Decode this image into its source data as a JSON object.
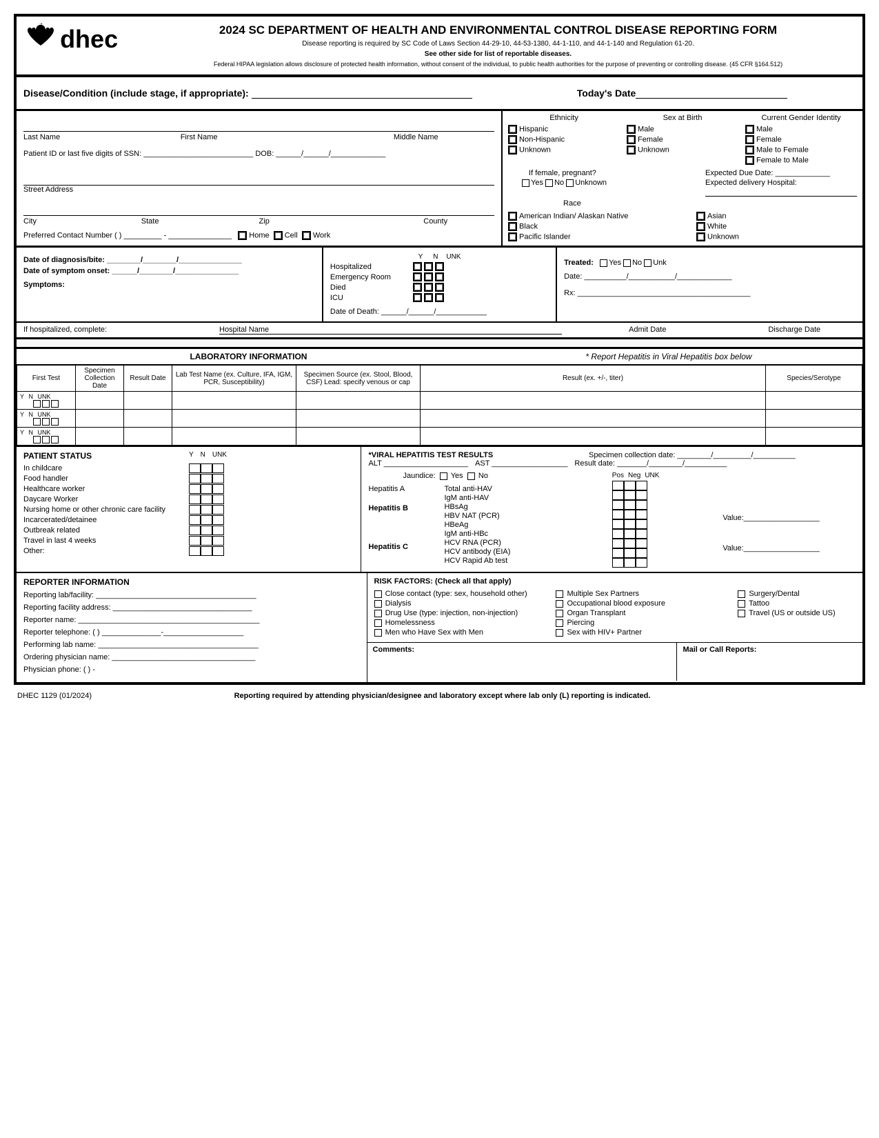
{
  "header": {
    "org": "dhec",
    "title": "2024 SC DEPARTMENT OF HEALTH AND ENVIRONMENTAL CONTROL DISEASE REPORTING FORM",
    "subtitle1": "Disease reporting is required by SC Code of Laws Section 44-29-10, 44-53-1380, 44-1-110, and 44-1-140 and Regulation 61-20.",
    "subtitle2": "See other side for list of reportable diseases.",
    "subtitle3": "Federal HIPAA legislation allows disclosure of protected health information, without consent of the individual, to public health authorities for the purpose of preventing or controlling disease. (45 CFR §164.512)"
  },
  "disease": {
    "label": "Disease/Condition (include stage, if appropriate): ",
    "date_label": "Today's Date"
  },
  "patient": {
    "last_name": "Last Name",
    "first_name": "First Name",
    "middle_name": "Middle Name",
    "pid": "Patient ID or last five digits of SSN: __________________________ DOB: ______/______/_____________",
    "street": "Street Address",
    "city": "City",
    "state": "State",
    "zip": "Zip",
    "county": "County",
    "contact": "Preferred Contact Number  (          ) _________ - _______________",
    "home": "Home",
    "cell": "Cell",
    "work": "Work"
  },
  "demographics": {
    "ethnicity": "Ethnicity",
    "sex": "Sex at Birth",
    "gender": "Current Gender Identity",
    "eth_opts": [
      "Hispanic",
      "Non-Hispanic",
      "Unknown"
    ],
    "sex_opts": [
      "Male",
      "Female",
      "Unknown"
    ],
    "gender_opts": [
      "Male",
      "Female",
      "Male to Female",
      "Female to Male"
    ],
    "pregnant": "If female, pregnant?",
    "preg_opts": [
      "Yes",
      "No",
      "Unknown"
    ],
    "due": "Expected Due Date: _____________",
    "hospital": "Expected delivery Hospital:",
    "race": "Race",
    "race_opts_left": [
      "American Indian/ Alaskan Native",
      "Black",
      "Pacific Islander"
    ],
    "race_opts_right": [
      "Asian",
      "White",
      "Unknown"
    ]
  },
  "diagnosis": {
    "diag_date": "Date of diagnosis/bite: ________/________/_______________",
    "onset_date": "Date of symptom onset: ______/________/_______________",
    "symptoms": "Symptoms:",
    "ynu": [
      "Y",
      "N",
      "UNK"
    ],
    "rows": [
      "Hospitalized",
      "Emergency Room",
      "Died",
      "ICU"
    ],
    "dod": "Date of Death:  ______/______/____________",
    "treated": "Treated:",
    "treat_opts": [
      "Yes",
      "No",
      "Unk"
    ],
    "treat_date": "Date: __________/___________/_____________",
    "rx": "Rx: _________________________________________"
  },
  "hospital": {
    "label": "If hospitalized, complete:",
    "name": "Hospital Name",
    "admit": "Admit Date",
    "discharge": "Discharge Date"
  },
  "lab": {
    "title": "LABORATORY INFORMATION",
    "note": "* Report Hepatitis in Viral Hepatitis box below",
    "cols": [
      "First Test",
      "Specimen Collection Date",
      "Result Date",
      "Lab Test Name (ex. Culture, IFA, IGM, PCR, Susceptibility)",
      "Specimen Source (ex. Stool, Blood, CSF) Lead: specify venous or cap",
      "Result (ex. +/-, titer)",
      "Species/Serotype"
    ],
    "ynu_labels": [
      "Y",
      "N",
      "UNK"
    ]
  },
  "status": {
    "title": "PATIENT STATUS",
    "ynu": [
      "Y",
      "N",
      "UNK"
    ],
    "items": [
      "In childcare",
      "Food handler",
      "Healthcare worker",
      "Daycare Worker",
      "Nursing home or other chronic care facility",
      "Incarcerated/detainee",
      "Outbreak related",
      "Travel in last 4 weeks",
      "Other:"
    ]
  },
  "hepatitis": {
    "title": "*VIRAL HEPATITIS TEST RESULTS",
    "spec_date": "Specimen collection date: ________/_________/__________",
    "alt": "ALT ____________________",
    "ast": "AST __________________",
    "result_date": "Result date:  _______/________/__________",
    "jaundice": "Jaundice:",
    "jaundice_opts": [
      "Yes",
      "No"
    ],
    "pnu": [
      "Pos",
      "Neg",
      "UNK"
    ],
    "hepA": "Hepatitis A",
    "hepA_tests": [
      "Total anti-HAV",
      "IgM anti-HAV"
    ],
    "hepB": "Hepatitis B",
    "hepB_tests": [
      "HBsAg",
      "HBV NAT (PCR)",
      "HBeAg",
      "IgM anti-HBc"
    ],
    "hepC": "Hepatitis C",
    "hepC_tests": [
      "HCV RNA (PCR)",
      "HCV antibody (EIA)",
      "HCV Rapid Ab test"
    ],
    "value": "Value:__________________"
  },
  "reporter": {
    "title": "REPORTER INFORMATION",
    "facility": "Reporting lab/facility: ______________________________________",
    "address": "Reporting facility address: _________________________________",
    "name": "Reporter name: ___________________________________________",
    "phone": "Reporter telephone:  (              ) ______________-___________________",
    "lab": "Performing lab name: ______________________________________",
    "physician": "Ordering physician name: __________________________________",
    "phys_phone": "Physician phone:  (            )                   -"
  },
  "risk": {
    "title": "RISK FACTORS:  (Check all that apply)",
    "col1": [
      "Close contact (type: sex, household other)",
      "Dialysis",
      "Drug Use (type: injection, non-injection)",
      "Homelessness",
      "Men who Have Sex with Men"
    ],
    "col2": [
      "Multiple Sex Partners",
      "Occupational blood exposure",
      "Organ Transplant",
      "Piercing",
      "Sex with HIV+ Partner"
    ],
    "col3": [
      "Surgery/Dental",
      "Tattoo",
      "Travel (US or outside US)"
    ]
  },
  "comments": {
    "label": "Comments:",
    "mail": "Mail or Call Reports:"
  },
  "footer": {
    "form": "DHEC 1129 (01/2024)",
    "note": "Reporting required by attending physician/designee and laboratory except where lab only (L) reporting is indicated."
  }
}
